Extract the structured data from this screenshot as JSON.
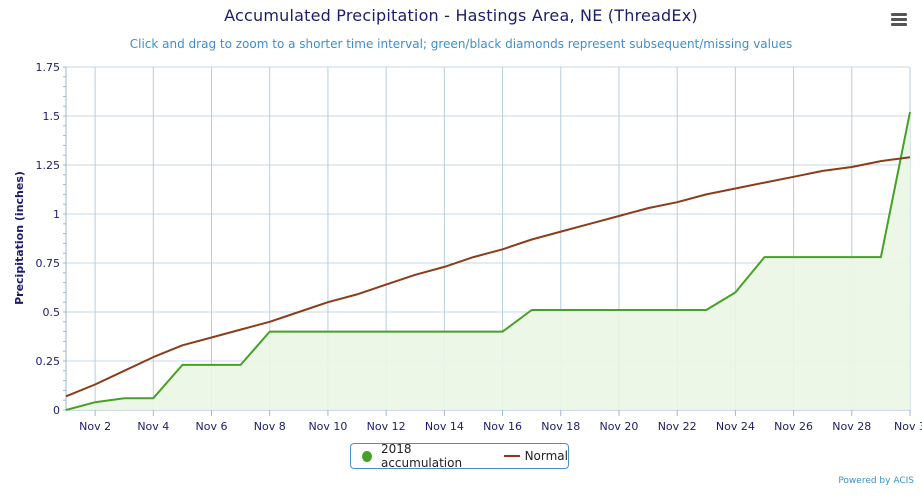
{
  "chart_data": {
    "type": "line",
    "title": "Accumulated Precipitation - Hastings Area, NE (ThreadEx)",
    "subtitle": "Click and drag to zoom to a shorter time interval; green/black diamonds represent subsequent/missing values",
    "ylabel": "Precipitation (inches)",
    "xlabel": "",
    "ylim": [
      0,
      1.75
    ],
    "yticks": [
      "0",
      "0.25",
      "0.5",
      "0.75",
      "1",
      "1.25",
      "1.5",
      "1.75"
    ],
    "x": [
      1,
      2,
      3,
      4,
      5,
      6,
      7,
      8,
      9,
      10,
      11,
      12,
      13,
      14,
      15,
      16,
      17,
      18,
      19,
      20,
      21,
      22,
      23,
      24,
      25,
      26,
      27,
      28,
      29,
      30
    ],
    "xticks": [
      "Nov 2",
      "Nov 4",
      "Nov 6",
      "Nov 8",
      "Nov 10",
      "Nov 12",
      "Nov 14",
      "Nov 16",
      "Nov 18",
      "Nov 20",
      "Nov 22",
      "Nov 24",
      "Nov 26",
      "Nov 28",
      "Nov 3"
    ],
    "xlim": [
      1,
      30
    ],
    "grid": true,
    "legend_position": "bottom-center",
    "series": [
      {
        "name": "2018 accumulation",
        "color": "#46a125",
        "fill": "#eaf6e6",
        "values": [
          0.0,
          0.04,
          0.06,
          0.06,
          0.23,
          0.23,
          0.23,
          0.4,
          0.4,
          0.4,
          0.4,
          0.4,
          0.4,
          0.4,
          0.4,
          0.4,
          0.51,
          0.51,
          0.51,
          0.51,
          0.51,
          0.51,
          0.51,
          0.6,
          0.78,
          0.78,
          0.78,
          0.78,
          0.78,
          1.52
        ]
      },
      {
        "name": "Normal",
        "color": "#8b3d1b",
        "values": [
          0.07,
          0.13,
          0.2,
          0.27,
          0.33,
          0.37,
          0.41,
          0.45,
          0.5,
          0.55,
          0.59,
          0.64,
          0.69,
          0.73,
          0.78,
          0.82,
          0.87,
          0.91,
          0.95,
          0.99,
          1.03,
          1.06,
          1.1,
          1.13,
          1.16,
          1.19,
          1.22,
          1.24,
          1.27,
          1.29
        ]
      }
    ]
  },
  "credits": "Powered by ACIS",
  "menu_icon": "hamburger-menu-icon"
}
